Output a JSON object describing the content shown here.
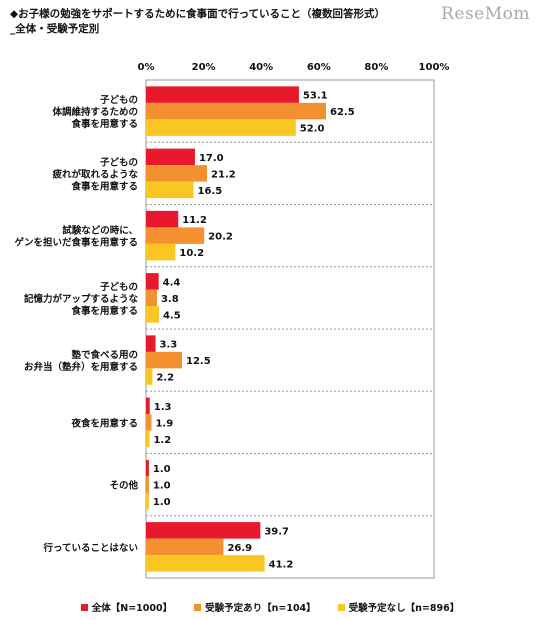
{
  "header": {
    "title_line1": "◆お子様の勉強をサポートするために食事面で行っていること（複数回答形式）",
    "title_line2": "_全体・受験予定別",
    "logo_text": "ReseMom"
  },
  "chart_data": {
    "type": "bar",
    "orientation": "horizontal",
    "xlim": [
      0,
      100
    ],
    "xticks": [
      "0%",
      "20%",
      "40%",
      "60%",
      "80%",
      "100%"
    ],
    "xtick_values": [
      0,
      20,
      40,
      60,
      80,
      100
    ],
    "grid": false,
    "legend_position": "bottom",
    "categories": [
      [
        "子どもの",
        "体調維持するための",
        "食事を用意する"
      ],
      [
        "子どもの",
        "疲れが取れるような",
        "食事を用意する"
      ],
      [
        "試験などの時に、",
        "ゲンを担いだ食事を用意する"
      ],
      [
        "子どもの",
        "記憶力がアップするような",
        "食事を用意する"
      ],
      [
        "塾で食べる用の",
        "お弁当（塾弁）を用意する"
      ],
      [
        "夜食を用意する"
      ],
      [
        "その他"
      ],
      [
        "行っていることはない"
      ]
    ],
    "series": [
      {
        "name": "全体【N=1000】",
        "color": "#e8192c",
        "values": [
          53.1,
          17.0,
          11.2,
          4.4,
          3.3,
          1.3,
          1.0,
          39.7
        ],
        "labels": [
          "53.1",
          "17.0",
          "11.2",
          "4.4",
          "3.3",
          "1.3",
          "1.0",
          "39.7"
        ]
      },
      {
        "name": "受験予定あり【n=104】",
        "color": "#f39131",
        "values": [
          62.5,
          21.2,
          20.2,
          3.8,
          12.5,
          1.9,
          1.0,
          26.9
        ],
        "labels": [
          "62.5",
          "21.2",
          "20.2",
          "3.8",
          "12.5",
          "1.9",
          "1.0",
          "26.9"
        ]
      },
      {
        "name": "受験予定なし【n=896】",
        "color": "#f9c623",
        "values": [
          52.0,
          16.5,
          10.2,
          4.5,
          2.2,
          1.2,
          1.0,
          41.2
        ],
        "labels": [
          "52.0",
          "16.5",
          "10.2",
          "4.5",
          "2.2",
          "1.2",
          "1.0",
          "41.2"
        ]
      }
    ]
  }
}
